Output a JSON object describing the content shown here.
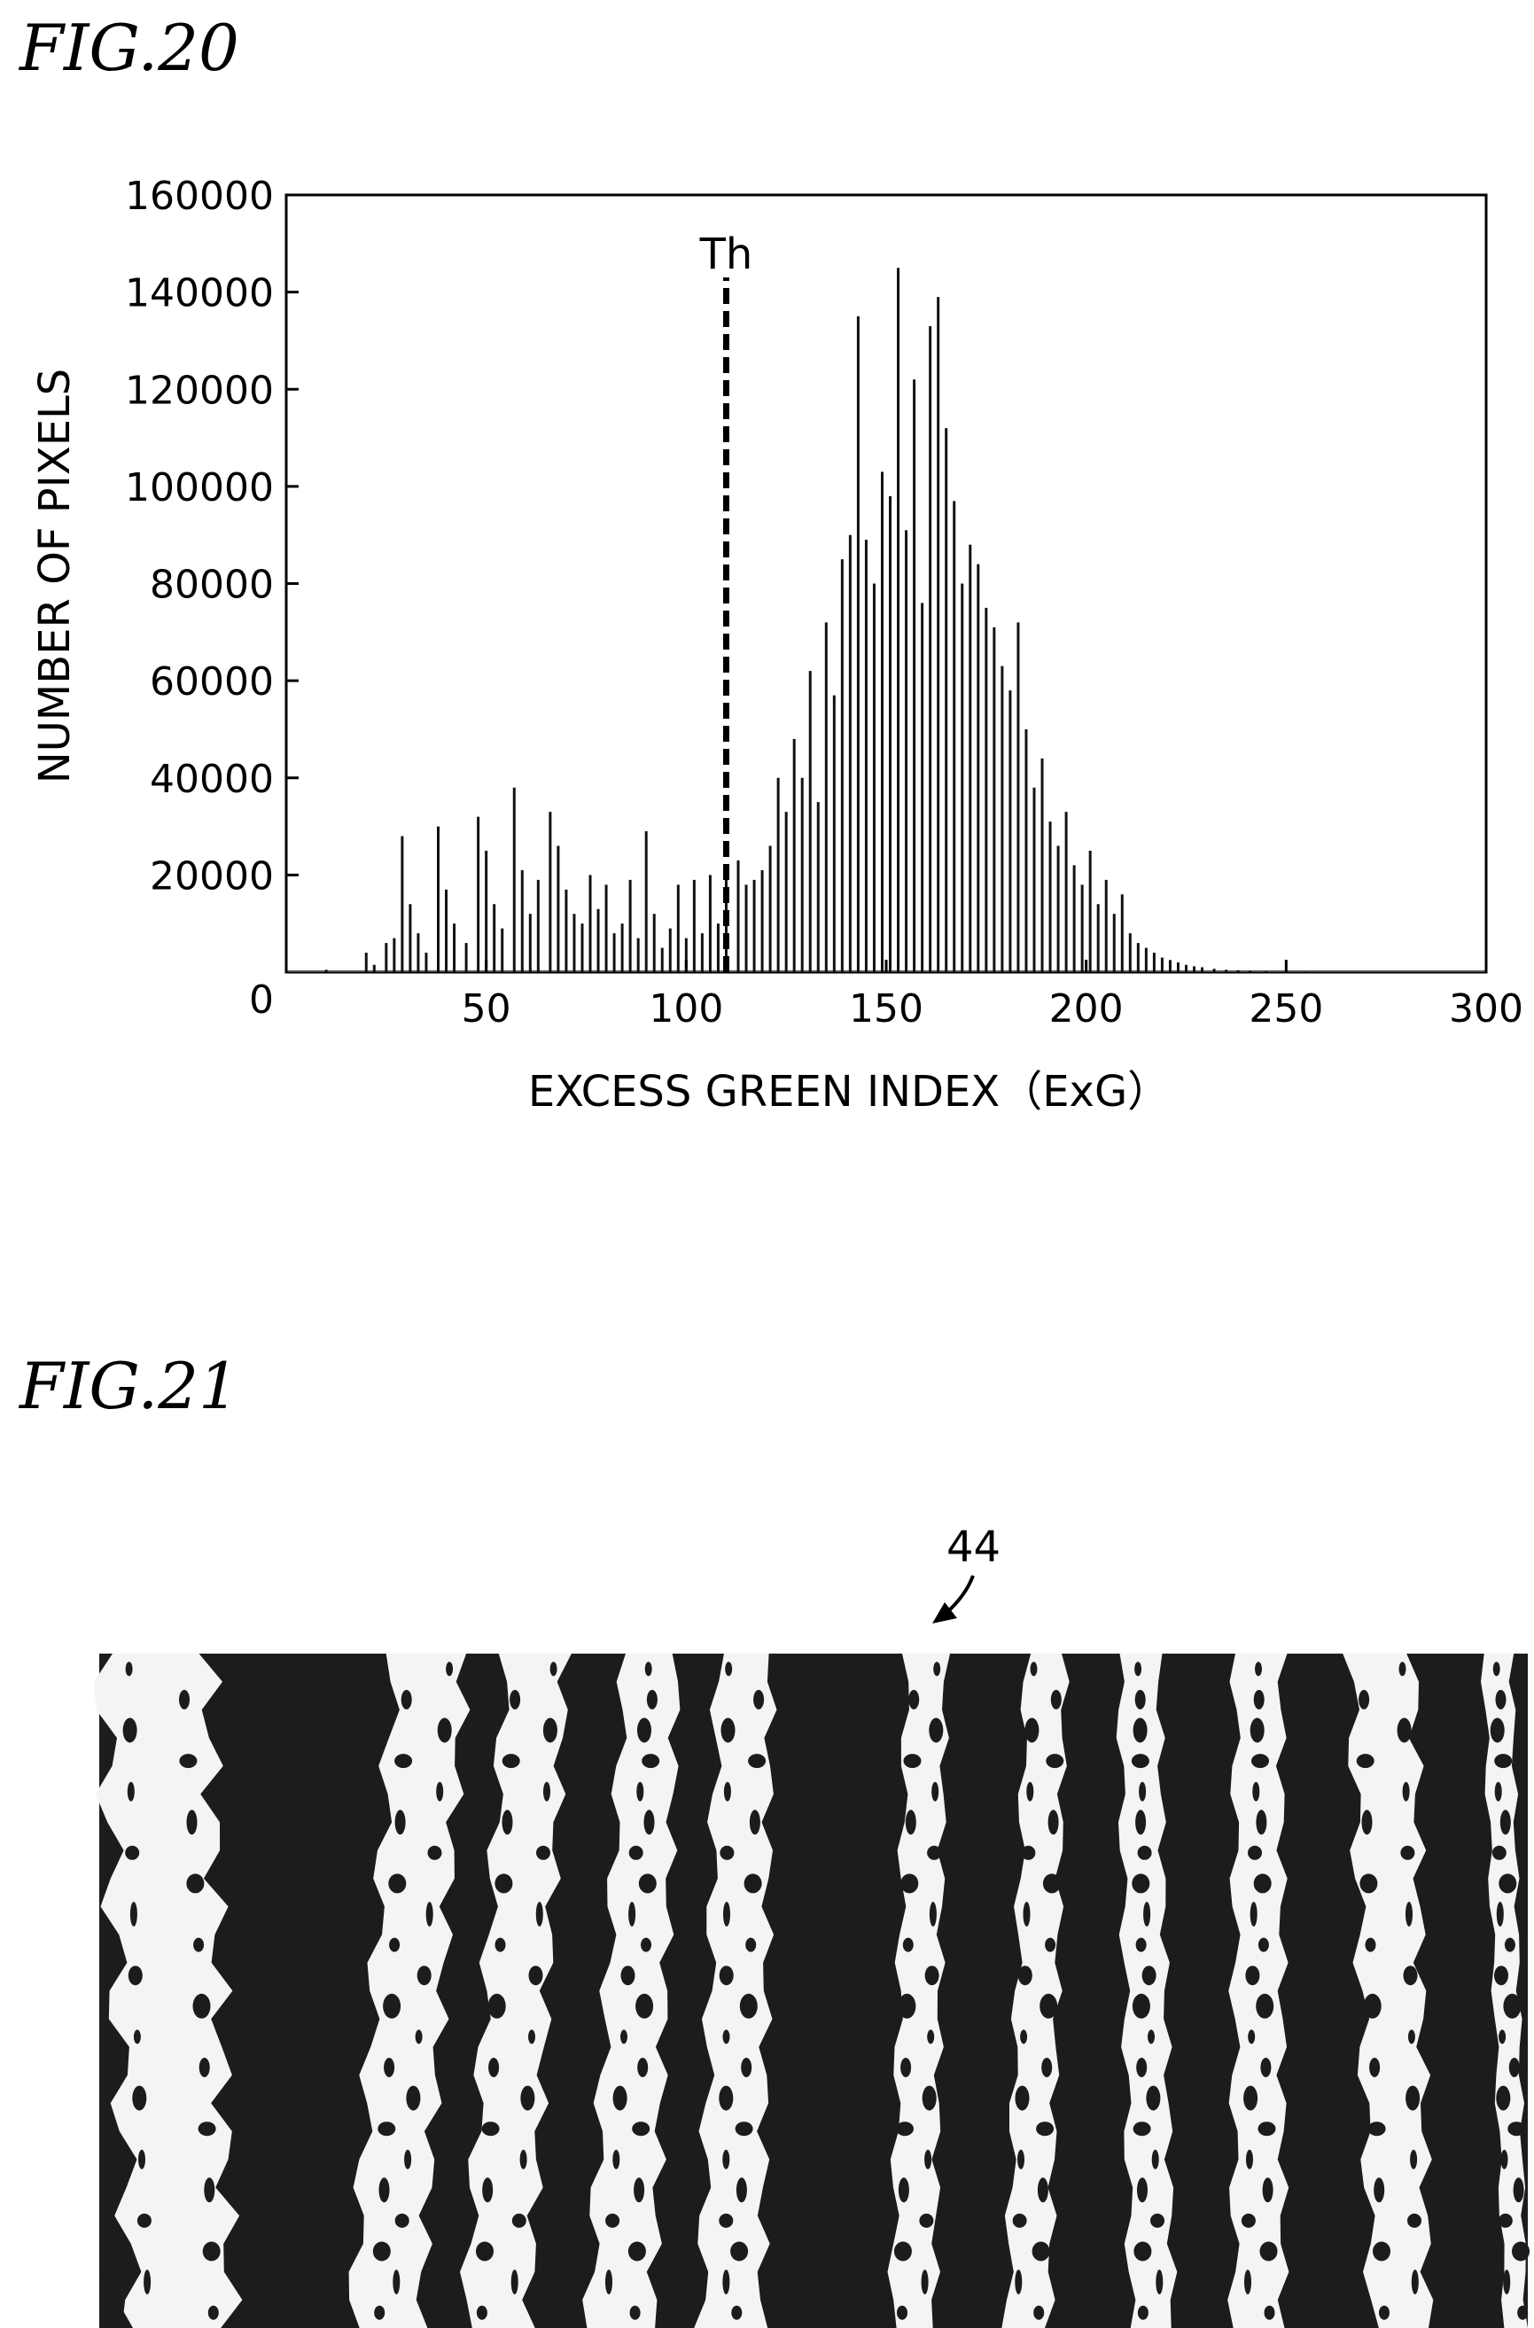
{
  "figures": {
    "fig20": "FIG.20",
    "fig21": "FIG.21"
  },
  "chart_data": {
    "type": "bar",
    "xlabel": "EXCESS GREEN INDEX（ExG）",
    "ylabel": "NUMBER OF PIXELS",
    "xlim": [
      0,
      300
    ],
    "ylim": [
      0,
      160000
    ],
    "xticks": [
      0,
      50,
      100,
      150,
      200,
      250,
      300
    ],
    "yticks": [
      20000,
      40000,
      60000,
      80000,
      100000,
      120000,
      140000,
      160000
    ],
    "grid": false,
    "threshold": {
      "label": "Th",
      "x": 110,
      "top": 143000
    },
    "x": [
      10,
      20,
      22,
      25,
      27,
      29,
      31,
      33,
      35,
      38,
      40,
      42,
      45,
      48,
      50,
      52,
      54,
      57,
      59,
      61,
      63,
      66,
      68,
      70,
      72,
      74,
      76,
      78,
      80,
      82,
      84,
      86,
      88,
      90,
      92,
      94,
      96,
      98,
      100,
      102,
      104,
      106,
      108,
      110,
      113,
      115,
      117,
      119,
      121,
      123,
      125,
      127,
      129,
      131,
      133,
      135,
      137,
      139,
      141,
      143,
      145,
      147,
      149,
      151,
      153,
      155,
      157,
      159,
      161,
      163,
      165,
      167,
      169,
      171,
      173,
      175,
      177,
      179,
      181,
      183,
      185,
      187,
      189,
      191,
      193,
      195,
      197,
      199,
      201,
      203,
      205,
      207,
      209,
      211,
      213,
      215,
      217,
      219,
      221,
      223,
      225,
      227,
      229,
      232,
      235,
      238,
      241,
      245,
      250,
      255
    ],
    "values": [
      500,
      4000,
      1500,
      6000,
      7000,
      28000,
      14000,
      8000,
      4000,
      30000,
      17000,
      10000,
      6000,
      32000,
      25000,
      14000,
      9000,
      38000,
      21000,
      12000,
      19000,
      33000,
      26000,
      17000,
      12000,
      10000,
      20000,
      13000,
      18000,
      8000,
      10000,
      19000,
      7000,
      29000,
      12000,
      5000,
      9000,
      18000,
      7000,
      19000,
      8000,
      20000,
      10000,
      19000,
      23000,
      18000,
      19000,
      21000,
      26000,
      40000,
      33000,
      48000,
      40000,
      62000,
      35000,
      72000,
      57000,
      85000,
      90000,
      135000,
      89000,
      80000,
      103000,
      98000,
      145000,
      91000,
      122000,
      76000,
      133000,
      139000,
      112000,
      97000,
      80000,
      88000,
      84000,
      75000,
      71000,
      63000,
      58000,
      72000,
      50000,
      38000,
      44000,
      31000,
      26000,
      33000,
      22000,
      18000,
      25000,
      14000,
      19000,
      12000,
      16000,
      8000,
      6000,
      5000,
      4000,
      3000,
      2500,
      2000,
      1500,
      1200,
      1000,
      700,
      500,
      400,
      300,
      200,
      100,
      50
    ]
  },
  "fig21": {
    "reference": "44"
  }
}
